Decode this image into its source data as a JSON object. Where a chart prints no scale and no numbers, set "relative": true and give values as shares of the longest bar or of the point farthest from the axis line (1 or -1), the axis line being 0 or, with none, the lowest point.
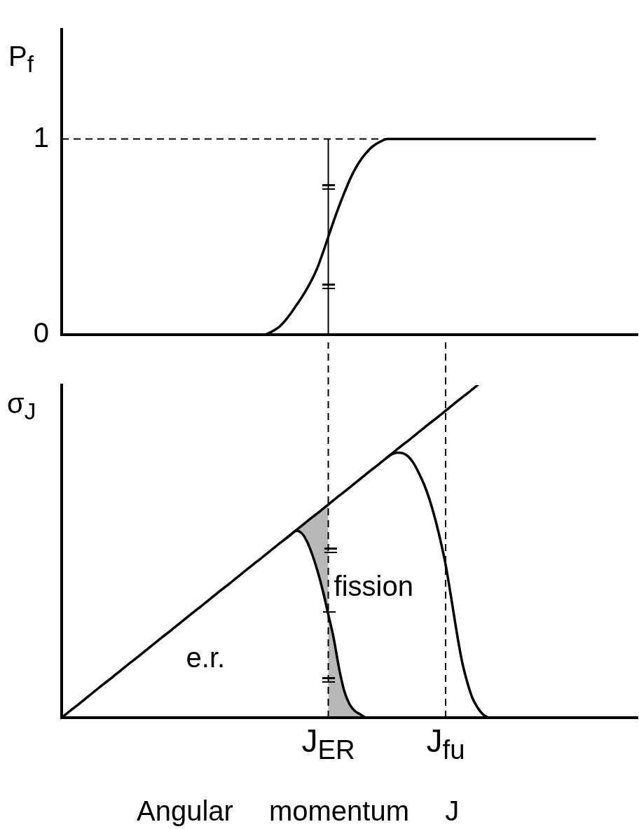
{
  "chart_data": [
    {
      "type": "line",
      "ylabel": "P$_{f}$",
      "categories": [
        null,
        null,
        null,
        null,
        null,
        null,
        null,
        null,
        null,
        null,
        null,
        null,
        null,
        null,
        null,
        null,
        null,
        null,
        null,
        null,
        null,
        null,
        null,
        null,
        null,
        null,
        null,
        null,
        null,
        null,
        null,
        null,
        null,
        null,
        null,
        null,
        null,
        null,
        null,
        null,
        null,
        null,
        null,
        null,
        null,
        null,
        null,
        null,
        null,
        null,
        "J$_{ER}$",
        null,
        null,
        null,
        null,
        null,
        null,
        null,
        null,
        null,
        null,
        null,
        null,
        null,
        null,
        null,
        null,
        null,
        null,
        null,
        null,
        null,
        "J$_{fu}$",
        null,
        null,
        null,
        null,
        null,
        null,
        null,
        null,
        null,
        null,
        null,
        null,
        null,
        null,
        null,
        null,
        null,
        null,
        null,
        null,
        null,
        null,
        null,
        null,
        null,
        null,
        null,
        null,
        null,
        null,
        null,
        null,
        null,
        null,
        null,
        null
      ],
      "values": [
        null,
        null,
        null,
        null,
        null,
        null,
        null,
        null,
        null,
        null,
        null,
        null,
        null,
        null,
        null,
        null,
        null,
        null,
        null,
        null,
        null,
        null,
        null,
        null,
        null,
        null,
        null,
        null,
        null,
        null,
        null,
        null,
        null,
        null,
        null,
        null,
        0,
        0,
        0,
        0.01,
        0.025,
        0.045,
        0.075,
        0.11,
        0.15,
        0.19,
        0.235,
        0.285,
        0.345,
        0.42,
        0.5,
        0.58,
        0.655,
        0.725,
        0.79,
        0.845,
        0.89,
        0.925,
        0.955,
        0.975,
        0.99,
        1,
        1,
        1,
        1,
        1,
        1,
        1,
        1,
        1,
        1,
        1,
        1,
        1,
        1,
        1,
        1,
        1,
        1,
        1,
        1,
        1,
        1,
        1,
        1,
        1,
        1,
        1,
        1,
        1,
        1,
        1,
        1,
        1,
        1,
        1,
        1,
        1,
        1,
        1,
        1,
        null,
        null,
        null,
        null,
        null,
        null,
        null,
        null
      ],
      "color": "#000000",
      "ylim": [
        0,
        1.56
      ],
      "yticks": [
        0,
        1
      ],
      "tick_labels": "y",
      "ref_lines": [
        {
          "axis": "y",
          "value": 1,
          "line_style": "dashed"
        },
        {
          "axis": "x",
          "value": "J$_{ER}$",
          "line_style": "solid"
        }
      ]
    },
    {
      "type": "line",
      "relative": true,
      "ylabel": "σ$_{J}$",
      "xlabel": "Angular momentum J",
      "tick_labels": "x",
      "categories": [
        null,
        null,
        null,
        null,
        null,
        null,
        null,
        null,
        null,
        null,
        null,
        null,
        null,
        null,
        null,
        null,
        null,
        null,
        null,
        null,
        null,
        null,
        null,
        null,
        null,
        null,
        null,
        null,
        null,
        null,
        null,
        null,
        null,
        null,
        null,
        null,
        null,
        null,
        null,
        null,
        null,
        null,
        null,
        null,
        null,
        null,
        null,
        null,
        null,
        null,
        "J$_{ER}$",
        null,
        null,
        null,
        null,
        null,
        null,
        null,
        null,
        null,
        null,
        null,
        null,
        null,
        null,
        null,
        null,
        null,
        null,
        null,
        null,
        null,
        "J$_{fu}$",
        null,
        null,
        null,
        null,
        null,
        null,
        null,
        null,
        null,
        null,
        null,
        null,
        null,
        null,
        null,
        null,
        null,
        null,
        null,
        null,
        null,
        null,
        null,
        null,
        null,
        null,
        null,
        null,
        null,
        null,
        null,
        null,
        null,
        null,
        null,
        null
      ],
      "series": [
        {
          "color": "#000000",
          "values": [
            0,
            0.013,
            0.026,
            0.038,
            0.051,
            0.064,
            0.077,
            0.09,
            0.103,
            0.115,
            0.128,
            0.141,
            0.154,
            0.167,
            0.179,
            0.192,
            0.205,
            0.218,
            0.231,
            0.244,
            0.256,
            0.269,
            0.282,
            0.295,
            0.308,
            0.321,
            0.333,
            0.346,
            0.359,
            0.372,
            0.385,
            0.397,
            0.41,
            0.423,
            0.436,
            0.449,
            0.462,
            0.474,
            0.487,
            0.5,
            0.513,
            0.526,
            0.538,
            0.551,
            0.564,
            0.577,
            0.59,
            0.603,
            0.615,
            0.628,
            0.641,
            0.654,
            0.667,
            0.679,
            0.692,
            0.705,
            0.718,
            0.731,
            0.744,
            0.756,
            0.769,
            0.782,
            0.795,
            0.808,
            0.821,
            0.833,
            0.846,
            0.859,
            0.872,
            0.885,
            0.897,
            0.91,
            0.923,
            0.936,
            0.949,
            0.962,
            0.974,
            0.987,
            1,
            null,
            null,
            null,
            null,
            null,
            null,
            null,
            null,
            null,
            null,
            null,
            null,
            null,
            null,
            null,
            null,
            null,
            null,
            null,
            null,
            null,
            null,
            null,
            null,
            null,
            null,
            null,
            null,
            null,
            null
          ],
          "lower": [
            null,
            null,
            null,
            null,
            null,
            null,
            null,
            null,
            null,
            null,
            null,
            null,
            null,
            null,
            null,
            null,
            null,
            null,
            null,
            null,
            null,
            null,
            null,
            null,
            null,
            null,
            null,
            null,
            null,
            null,
            null,
            null,
            null,
            null,
            null,
            null,
            null,
            null,
            null,
            null,
            null,
            null,
            null,
            null,
            0.562,
            0.555,
            0.53,
            0.49,
            0.44,
            0.38,
            0.31,
            null,
            null,
            null,
            null,
            null,
            null,
            null,
            null,
            null,
            null,
            null,
            null,
            null,
            null,
            null,
            null,
            null,
            null,
            null,
            null,
            null,
            null,
            null,
            null,
            null,
            null,
            null,
            null,
            null,
            null,
            null,
            null,
            null,
            null,
            null,
            null,
            null,
            null,
            null,
            null,
            null,
            null,
            null,
            null,
            null,
            null,
            null,
            null,
            null,
            null,
            null,
            null,
            null,
            null,
            null,
            null,
            null,
            null
          ],
          "upper": [
            null,
            null,
            null,
            null,
            null,
            null,
            null,
            null,
            null,
            null,
            null,
            null,
            null,
            null,
            null,
            null,
            null,
            null,
            null,
            null,
            null,
            null,
            null,
            null,
            null,
            null,
            null,
            null,
            null,
            null,
            null,
            null,
            null,
            null,
            null,
            null,
            null,
            null,
            null,
            null,
            null,
            null,
            null,
            null,
            0.564,
            0.577,
            0.59,
            0.603,
            0.615,
            0.628,
            0.641,
            null,
            null,
            null,
            null,
            null,
            null,
            null,
            null,
            null,
            null,
            null,
            null,
            null,
            null,
            null,
            null,
            null,
            null,
            null,
            null,
            null,
            null,
            null,
            null,
            null,
            null,
            null,
            null,
            null,
            null,
            null,
            null,
            null,
            null,
            null,
            null,
            null,
            null,
            null,
            null,
            null,
            null,
            null,
            null,
            null,
            null,
            null,
            null,
            null,
            null,
            null,
            null,
            null,
            null,
            null,
            null,
            null,
            null
          ]
        },
        {
          "color": "#000000",
          "values": [
            null,
            null,
            null,
            null,
            null,
            null,
            null,
            null,
            null,
            null,
            null,
            null,
            null,
            null,
            null,
            null,
            null,
            null,
            null,
            null,
            null,
            null,
            null,
            null,
            null,
            null,
            null,
            null,
            null,
            null,
            null,
            null,
            null,
            null,
            null,
            null,
            null,
            null,
            null,
            null,
            null,
            null,
            0.538,
            0.551,
            0.562,
            0.555,
            0.53,
            0.49,
            0.44,
            0.38,
            0.31,
            0.24,
            0.15,
            0.08,
            0.04,
            0.02,
            0.01,
            0,
            null,
            null,
            null,
            null,
            null,
            null,
            null,
            null,
            null,
            null,
            null,
            null,
            null,
            null,
            null,
            null,
            null,
            null,
            null,
            null,
            null,
            null,
            null,
            null,
            null,
            null,
            null,
            null,
            null,
            null,
            null,
            null,
            null,
            null,
            null,
            null,
            null,
            null,
            null,
            null,
            null,
            null,
            null,
            null,
            null,
            null,
            null,
            null,
            null,
            null,
            null
          ],
          "lower": [
            null,
            null,
            null,
            null,
            null,
            null,
            null,
            null,
            null,
            null,
            null,
            null,
            null,
            null,
            null,
            null,
            null,
            null,
            null,
            null,
            null,
            null,
            null,
            null,
            null,
            null,
            null,
            null,
            null,
            null,
            null,
            null,
            null,
            null,
            null,
            null,
            null,
            null,
            null,
            null,
            null,
            null,
            null,
            null,
            null,
            null,
            null,
            null,
            null,
            null,
            0,
            0,
            0,
            0,
            0,
            0,
            0,
            0,
            null,
            null,
            null,
            null,
            null,
            null,
            null,
            null,
            null,
            null,
            null,
            null,
            null,
            null,
            null,
            null,
            null,
            null,
            null,
            null,
            null,
            null,
            null,
            null,
            null,
            null,
            null,
            null,
            null,
            null,
            null,
            null,
            null,
            null,
            null,
            null,
            null,
            null,
            null,
            null,
            null,
            null,
            null,
            null,
            null,
            null,
            null,
            null,
            null,
            null,
            null
          ],
          "upper": [
            null,
            null,
            null,
            null,
            null,
            null,
            null,
            null,
            null,
            null,
            null,
            null,
            null,
            null,
            null,
            null,
            null,
            null,
            null,
            null,
            null,
            null,
            null,
            null,
            null,
            null,
            null,
            null,
            null,
            null,
            null,
            null,
            null,
            null,
            null,
            null,
            null,
            null,
            null,
            null,
            null,
            null,
            null,
            null,
            null,
            null,
            null,
            null,
            null,
            null,
            0.31,
            0.24,
            0.15,
            0.08,
            0.04,
            0.02,
            0.01,
            0,
            null,
            null,
            null,
            null,
            null,
            null,
            null,
            null,
            null,
            null,
            null,
            null,
            null,
            null,
            null,
            null,
            null,
            null,
            null,
            null,
            null,
            null,
            null,
            null,
            null,
            null,
            null,
            null,
            null,
            null,
            null,
            null,
            null,
            null,
            null,
            null,
            null,
            null,
            null,
            null,
            null,
            null,
            null,
            null,
            null,
            null,
            null,
            null,
            null,
            null,
            null
          ]
        },
        {
          "color": "#000000",
          "values": [
            null,
            null,
            null,
            null,
            null,
            null,
            null,
            null,
            null,
            null,
            null,
            null,
            null,
            null,
            null,
            null,
            null,
            null,
            null,
            null,
            null,
            null,
            null,
            null,
            null,
            null,
            null,
            null,
            null,
            null,
            null,
            null,
            null,
            null,
            null,
            null,
            null,
            null,
            null,
            null,
            null,
            null,
            null,
            null,
            null,
            null,
            null,
            null,
            null,
            null,
            null,
            null,
            null,
            null,
            null,
            null,
            null,
            null,
            null,
            null,
            null,
            0.782,
            0.793,
            0.797,
            0.795,
            0.785,
            0.765,
            0.735,
            0.7,
            0.655,
            0.6,
            0.535,
            0.46,
            0.365,
            0.265,
            0.175,
            0.11,
            0.06,
            0.03,
            0.01,
            0,
            null,
            null,
            null,
            null,
            null,
            null,
            null,
            null,
            null,
            null,
            null,
            null,
            null,
            null,
            null,
            null,
            null,
            null,
            null,
            null,
            null,
            null,
            null,
            null,
            null,
            null,
            null,
            null
          ]
        }
      ],
      "ref_lines": [
        {
          "axis": "x",
          "value": "J$_{ER}$",
          "line_style": "dashed"
        },
        {
          "axis": "x",
          "value": "J$_{fu}$",
          "line_style": "dashed"
        }
      ],
      "annotations": [
        "e.r.",
        {
          "text": "fission",
          "x": "J$_{ER}$",
          "y": 0.39
        }
      ]
    }
  ]
}
